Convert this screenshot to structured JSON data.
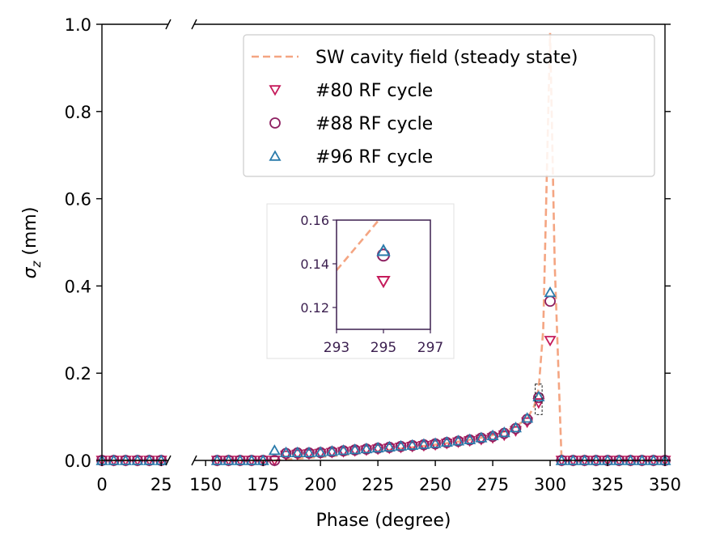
{
  "chart_data": {
    "type": "scatter",
    "xlabel": "Phase (degree)",
    "ylabel_main": "σ",
    "ylabel_sub": "z",
    "ylabel_unit": " (mm)",
    "ylim": [
      0,
      1.0
    ],
    "x_segments": [
      {
        "range": [
          0,
          28
        ],
        "ticks": [
          0,
          25
        ],
        "tick_labels": [
          "0",
          "25"
        ]
      },
      {
        "range": [
          145,
          350
        ],
        "ticks": [
          150,
          175,
          200,
          225,
          250,
          275,
          300,
          325,
          350
        ],
        "tick_labels": [
          "150",
          "175",
          "200",
          "225",
          "250",
          "275",
          "300",
          "325",
          "350"
        ]
      }
    ],
    "y_ticks": [
      0.0,
      0.2,
      0.4,
      0.6,
      0.8,
      1.0
    ],
    "y_tick_labels": [
      "0.0",
      "0.2",
      "0.4",
      "0.6",
      "0.8",
      "1.0"
    ],
    "colors": {
      "sw": "#f4a582",
      "c80": "#c51b5b",
      "c88": "#8e2162",
      "c96": "#2a7bab",
      "inset_frame": "#3b1f4f"
    },
    "legend": [
      {
        "label": "SW cavity field (steady state)",
        "marker": "dash",
        "color": "#f4a582"
      },
      {
        "label": "#80 RF cycle",
        "marker": "triangle-down",
        "color": "#c51b5b"
      },
      {
        "label": "#88 RF cycle",
        "marker": "circle",
        "color": "#8e2162"
      },
      {
        "label": "#96 RF cycle",
        "marker": "triangle-up",
        "color": "#2a7bab"
      }
    ],
    "series": [
      {
        "name": "SW cavity field (steady state)",
        "style": "dashed",
        "x": [
          0,
          28,
          155,
          170,
          180,
          190,
          200,
          210,
          220,
          230,
          240,
          250,
          260,
          270,
          275,
          280,
          285,
          290,
          293,
          295,
          297,
          300,
          302,
          305,
          310,
          320,
          330,
          340,
          350
        ],
        "y": [
          0,
          0,
          0,
          0,
          0,
          0.004,
          0.008,
          0.012,
          0.018,
          0.024,
          0.03,
          0.036,
          0.043,
          0.052,
          0.058,
          0.066,
          0.078,
          0.096,
          0.124,
          0.165,
          0.3,
          0.98,
          0.45,
          0,
          0,
          0,
          0,
          0,
          0
        ]
      },
      {
        "name": "#80 RF cycle",
        "marker": "triangle-down",
        "x": [
          0,
          5,
          10,
          15,
          20,
          25,
          155,
          160,
          165,
          170,
          175,
          180,
          185,
          190,
          195,
          200,
          205,
          210,
          215,
          220,
          225,
          230,
          235,
          240,
          245,
          250,
          255,
          260,
          265,
          270,
          275,
          280,
          285,
          290,
          295,
          300,
          305,
          310,
          315,
          320,
          325,
          330,
          335,
          340,
          345,
          350
        ],
        "y": [
          0,
          0,
          0,
          0,
          0,
          0,
          0,
          0,
          0,
          0,
          0,
          0,
          0.012,
          0.014,
          0.015,
          0.016,
          0.018,
          0.02,
          0.022,
          0.024,
          0.026,
          0.028,
          0.03,
          0.032,
          0.034,
          0.036,
          0.039,
          0.042,
          0.045,
          0.048,
          0.052,
          0.058,
          0.068,
          0.088,
          0.132,
          0.275,
          0,
          0,
          0,
          0,
          0,
          0,
          0,
          0,
          0,
          0
        ]
      },
      {
        "name": "#88 RF cycle",
        "marker": "circle",
        "x": [
          0,
          5,
          10,
          15,
          20,
          25,
          155,
          160,
          165,
          170,
          175,
          180,
          185,
          190,
          195,
          200,
          205,
          210,
          215,
          220,
          225,
          230,
          235,
          240,
          245,
          250,
          255,
          260,
          265,
          270,
          275,
          280,
          285,
          290,
          295,
          300,
          305,
          310,
          315,
          320,
          325,
          330,
          335,
          340,
          345,
          350
        ],
        "y": [
          0,
          0,
          0,
          0,
          0,
          0,
          0,
          0,
          0,
          0,
          0,
          0,
          0.016,
          0.017,
          0.017,
          0.018,
          0.02,
          0.022,
          0.024,
          0.026,
          0.028,
          0.03,
          0.032,
          0.034,
          0.036,
          0.038,
          0.041,
          0.044,
          0.047,
          0.051,
          0.055,
          0.062,
          0.073,
          0.094,
          0.144,
          0.365,
          0,
          0,
          0,
          0,
          0,
          0,
          0,
          0,
          0,
          0
        ]
      },
      {
        "name": "#96 RF cycle",
        "marker": "triangle-up",
        "x": [
          0,
          5,
          10,
          15,
          20,
          25,
          155,
          160,
          165,
          170,
          175,
          180,
          185,
          190,
          195,
          200,
          205,
          210,
          215,
          220,
          225,
          230,
          235,
          240,
          245,
          250,
          255,
          260,
          265,
          270,
          275,
          280,
          285,
          290,
          295,
          300,
          305,
          310,
          315,
          320,
          325,
          330,
          335,
          340,
          345,
          350
        ],
        "y": [
          0,
          0,
          0,
          0,
          0,
          0,
          0,
          0,
          0,
          0,
          0,
          0.023,
          0.018,
          0.018,
          0.018,
          0.019,
          0.021,
          0.023,
          0.025,
          0.027,
          0.029,
          0.031,
          0.033,
          0.035,
          0.037,
          0.039,
          0.042,
          0.045,
          0.048,
          0.052,
          0.057,
          0.064,
          0.075,
          0.097,
          0.146,
          0.385,
          0,
          0,
          0,
          0,
          0,
          0,
          0,
          0,
          0,
          0
        ]
      }
    ],
    "inset": {
      "xlim": [
        293,
        297
      ],
      "ylim": [
        0.11,
        0.16
      ],
      "x_ticks": [
        293,
        295,
        297
      ],
      "x_tick_labels": [
        "293",
        "295",
        "297"
      ],
      "y_ticks": [
        0.12,
        0.14,
        0.16
      ],
      "y_tick_labels": [
        "0.12",
        "0.14",
        "0.16"
      ],
      "points": [
        {
          "series": "#80 RF cycle",
          "x": 295,
          "y": 0.132
        },
        {
          "series": "#88 RF cycle",
          "x": 295,
          "y": 0.144
        },
        {
          "series": "#96 RF cycle",
          "x": 295,
          "y": 0.146
        }
      ],
      "line": {
        "x": [
          293,
          294.8
        ],
        "y": [
          0.137,
          0.16
        ]
      }
    }
  }
}
